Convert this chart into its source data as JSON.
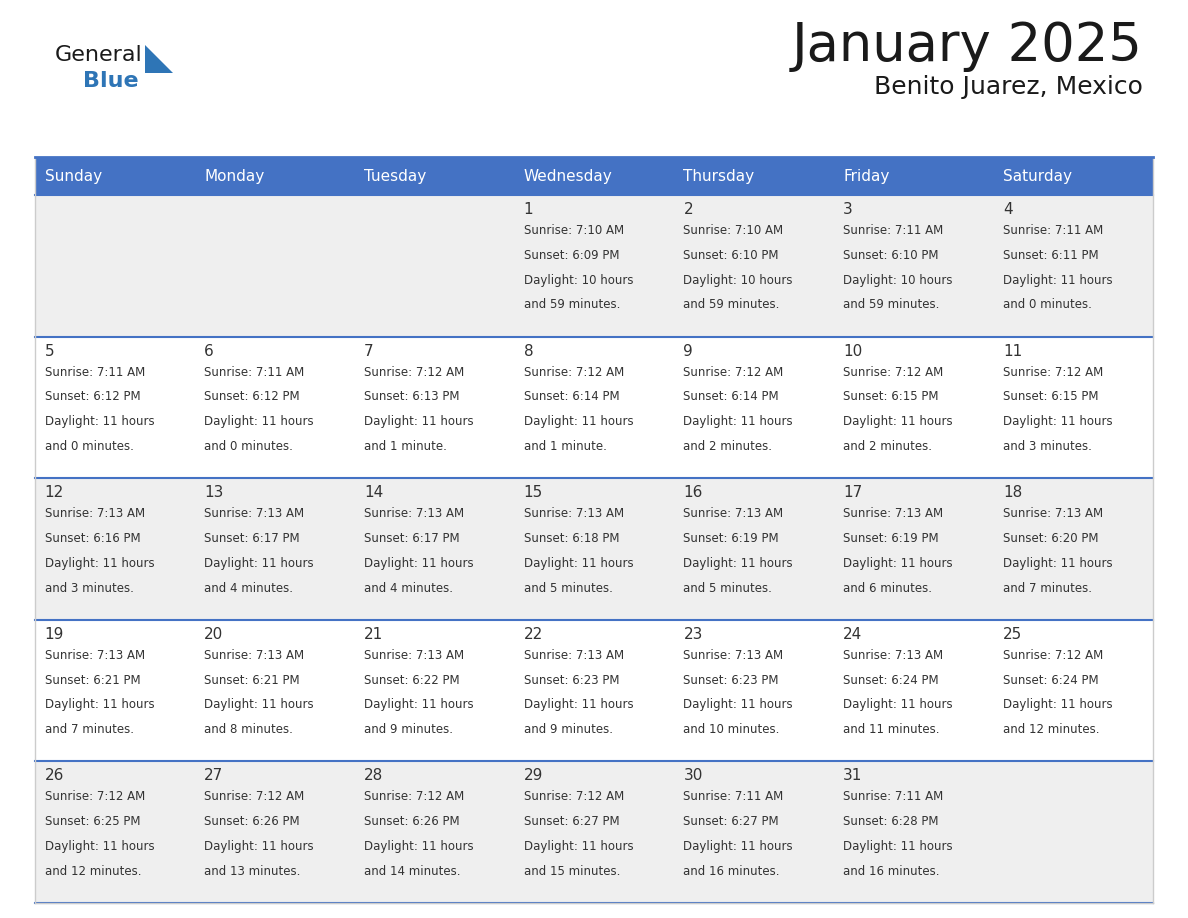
{
  "title": "January 2025",
  "subtitle": "Benito Juarez, Mexico",
  "header_color": "#4472C4",
  "header_text_color": "#FFFFFF",
  "cell_bg_even": "#EFEFEF",
  "cell_bg_odd": "#FFFFFF",
  "border_color": "#4472C4",
  "row_line_color": "#4472C4",
  "text_color": "#333333",
  "day_headers": [
    "Sunday",
    "Monday",
    "Tuesday",
    "Wednesday",
    "Thursday",
    "Friday",
    "Saturday"
  ],
  "days": [
    {
      "day": 1,
      "col": 3,
      "row": 0,
      "sunrise": "7:10 AM",
      "sunset": "6:09 PM",
      "daylight_h": "10 hours",
      "daylight_m": "and 59 minutes."
    },
    {
      "day": 2,
      "col": 4,
      "row": 0,
      "sunrise": "7:10 AM",
      "sunset": "6:10 PM",
      "daylight_h": "10 hours",
      "daylight_m": "and 59 minutes."
    },
    {
      "day": 3,
      "col": 5,
      "row": 0,
      "sunrise": "7:11 AM",
      "sunset": "6:10 PM",
      "daylight_h": "10 hours",
      "daylight_m": "and 59 minutes."
    },
    {
      "day": 4,
      "col": 6,
      "row": 0,
      "sunrise": "7:11 AM",
      "sunset": "6:11 PM",
      "daylight_h": "11 hours",
      "daylight_m": "and 0 minutes."
    },
    {
      "day": 5,
      "col": 0,
      "row": 1,
      "sunrise": "7:11 AM",
      "sunset": "6:12 PM",
      "daylight_h": "11 hours",
      "daylight_m": "and 0 minutes."
    },
    {
      "day": 6,
      "col": 1,
      "row": 1,
      "sunrise": "7:11 AM",
      "sunset": "6:12 PM",
      "daylight_h": "11 hours",
      "daylight_m": "and 0 minutes."
    },
    {
      "day": 7,
      "col": 2,
      "row": 1,
      "sunrise": "7:12 AM",
      "sunset": "6:13 PM",
      "daylight_h": "11 hours",
      "daylight_m": "and 1 minute."
    },
    {
      "day": 8,
      "col": 3,
      "row": 1,
      "sunrise": "7:12 AM",
      "sunset": "6:14 PM",
      "daylight_h": "11 hours",
      "daylight_m": "and 1 minute."
    },
    {
      "day": 9,
      "col": 4,
      "row": 1,
      "sunrise": "7:12 AM",
      "sunset": "6:14 PM",
      "daylight_h": "11 hours",
      "daylight_m": "and 2 minutes."
    },
    {
      "day": 10,
      "col": 5,
      "row": 1,
      "sunrise": "7:12 AM",
      "sunset": "6:15 PM",
      "daylight_h": "11 hours",
      "daylight_m": "and 2 minutes."
    },
    {
      "day": 11,
      "col": 6,
      "row": 1,
      "sunrise": "7:12 AM",
      "sunset": "6:15 PM",
      "daylight_h": "11 hours",
      "daylight_m": "and 3 minutes."
    },
    {
      "day": 12,
      "col": 0,
      "row": 2,
      "sunrise": "7:13 AM",
      "sunset": "6:16 PM",
      "daylight_h": "11 hours",
      "daylight_m": "and 3 minutes."
    },
    {
      "day": 13,
      "col": 1,
      "row": 2,
      "sunrise": "7:13 AM",
      "sunset": "6:17 PM",
      "daylight_h": "11 hours",
      "daylight_m": "and 4 minutes."
    },
    {
      "day": 14,
      "col": 2,
      "row": 2,
      "sunrise": "7:13 AM",
      "sunset": "6:17 PM",
      "daylight_h": "11 hours",
      "daylight_m": "and 4 minutes."
    },
    {
      "day": 15,
      "col": 3,
      "row": 2,
      "sunrise": "7:13 AM",
      "sunset": "6:18 PM",
      "daylight_h": "11 hours",
      "daylight_m": "and 5 minutes."
    },
    {
      "day": 16,
      "col": 4,
      "row": 2,
      "sunrise": "7:13 AM",
      "sunset": "6:19 PM",
      "daylight_h": "11 hours",
      "daylight_m": "and 5 minutes."
    },
    {
      "day": 17,
      "col": 5,
      "row": 2,
      "sunrise": "7:13 AM",
      "sunset": "6:19 PM",
      "daylight_h": "11 hours",
      "daylight_m": "and 6 minutes."
    },
    {
      "day": 18,
      "col": 6,
      "row": 2,
      "sunrise": "7:13 AM",
      "sunset": "6:20 PM",
      "daylight_h": "11 hours",
      "daylight_m": "and 7 minutes."
    },
    {
      "day": 19,
      "col": 0,
      "row": 3,
      "sunrise": "7:13 AM",
      "sunset": "6:21 PM",
      "daylight_h": "11 hours",
      "daylight_m": "and 7 minutes."
    },
    {
      "day": 20,
      "col": 1,
      "row": 3,
      "sunrise": "7:13 AM",
      "sunset": "6:21 PM",
      "daylight_h": "11 hours",
      "daylight_m": "and 8 minutes."
    },
    {
      "day": 21,
      "col": 2,
      "row": 3,
      "sunrise": "7:13 AM",
      "sunset": "6:22 PM",
      "daylight_h": "11 hours",
      "daylight_m": "and 9 minutes."
    },
    {
      "day": 22,
      "col": 3,
      "row": 3,
      "sunrise": "7:13 AM",
      "sunset": "6:23 PM",
      "daylight_h": "11 hours",
      "daylight_m": "and 9 minutes."
    },
    {
      "day": 23,
      "col": 4,
      "row": 3,
      "sunrise": "7:13 AM",
      "sunset": "6:23 PM",
      "daylight_h": "11 hours",
      "daylight_m": "and 10 minutes."
    },
    {
      "day": 24,
      "col": 5,
      "row": 3,
      "sunrise": "7:13 AM",
      "sunset": "6:24 PM",
      "daylight_h": "11 hours",
      "daylight_m": "and 11 minutes."
    },
    {
      "day": 25,
      "col": 6,
      "row": 3,
      "sunrise": "7:12 AM",
      "sunset": "6:24 PM",
      "daylight_h": "11 hours",
      "daylight_m": "and 12 minutes."
    },
    {
      "day": 26,
      "col": 0,
      "row": 4,
      "sunrise": "7:12 AM",
      "sunset": "6:25 PM",
      "daylight_h": "11 hours",
      "daylight_m": "and 12 minutes."
    },
    {
      "day": 27,
      "col": 1,
      "row": 4,
      "sunrise": "7:12 AM",
      "sunset": "6:26 PM",
      "daylight_h": "11 hours",
      "daylight_m": "and 13 minutes."
    },
    {
      "day": 28,
      "col": 2,
      "row": 4,
      "sunrise": "7:12 AM",
      "sunset": "6:26 PM",
      "daylight_h": "11 hours",
      "daylight_m": "and 14 minutes."
    },
    {
      "day": 29,
      "col": 3,
      "row": 4,
      "sunrise": "7:12 AM",
      "sunset": "6:27 PM",
      "daylight_h": "11 hours",
      "daylight_m": "and 15 minutes."
    },
    {
      "day": 30,
      "col": 4,
      "row": 4,
      "sunrise": "7:11 AM",
      "sunset": "6:27 PM",
      "daylight_h": "11 hours",
      "daylight_m": "and 16 minutes."
    },
    {
      "day": 31,
      "col": 5,
      "row": 4,
      "sunrise": "7:11 AM",
      "sunset": "6:28 PM",
      "daylight_h": "11 hours",
      "daylight_m": "and 16 minutes."
    }
  ]
}
